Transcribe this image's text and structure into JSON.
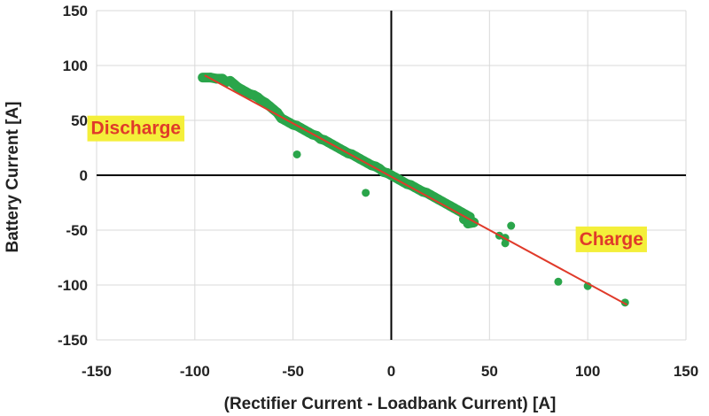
{
  "chart_data": {
    "type": "scatter",
    "title": "",
    "xlabel": "(Rectifier Current - Loadbank Current) [A]",
    "ylabel": "Battery Current [A]",
    "xlim": [
      -150,
      150
    ],
    "ylim": [
      -150,
      150
    ],
    "xticks": [
      -150,
      -100,
      -50,
      0,
      50,
      100,
      150
    ],
    "yticks": [
      -150,
      -100,
      -50,
      0,
      50,
      100,
      150
    ],
    "grid": true,
    "point_color": "#2aa54a",
    "trend_color": "#e03a2a",
    "trendline": {
      "x": [
        -95,
        120
      ],
      "y": [
        91,
        -118
      ]
    },
    "points": [
      {
        "x": -96,
        "y": 89
      },
      {
        "x": -92,
        "y": 89
      },
      {
        "x": -89,
        "y": 88
      },
      {
        "x": -86,
        "y": 88
      },
      {
        "x": -84,
        "y": 85
      },
      {
        "x": -82,
        "y": 86
      },
      {
        "x": -80,
        "y": 83
      },
      {
        "x": -78,
        "y": 80
      },
      {
        "x": -76,
        "y": 78
      },
      {
        "x": -74,
        "y": 76
      },
      {
        "x": -72,
        "y": 74
      },
      {
        "x": -70,
        "y": 73
      },
      {
        "x": -68,
        "y": 71
      },
      {
        "x": -66,
        "y": 68
      },
      {
        "x": -64,
        "y": 66
      },
      {
        "x": -62,
        "y": 63
      },
      {
        "x": -60,
        "y": 60
      },
      {
        "x": -58,
        "y": 57
      },
      {
        "x": -56,
        "y": 52
      },
      {
        "x": -54,
        "y": 50
      },
      {
        "x": -52,
        "y": 48
      },
      {
        "x": -50,
        "y": 46
      },
      {
        "x": -48,
        "y": 45
      },
      {
        "x": -46,
        "y": 43
      },
      {
        "x": -44,
        "y": 41
      },
      {
        "x": -42,
        "y": 39
      },
      {
        "x": -40,
        "y": 37
      },
      {
        "x": -38,
        "y": 36
      },
      {
        "x": -36,
        "y": 33
      },
      {
        "x": -34,
        "y": 32
      },
      {
        "x": -32,
        "y": 30
      },
      {
        "x": -30,
        "y": 28
      },
      {
        "x": -28,
        "y": 26
      },
      {
        "x": -26,
        "y": 24
      },
      {
        "x": -24,
        "y": 22
      },
      {
        "x": -22,
        "y": 20
      },
      {
        "x": -20,
        "y": 19
      },
      {
        "x": -18,
        "y": 17
      },
      {
        "x": -16,
        "y": 15
      },
      {
        "x": -14,
        "y": 13
      },
      {
        "x": -12,
        "y": 11
      },
      {
        "x": -10,
        "y": 9
      },
      {
        "x": -8,
        "y": 8
      },
      {
        "x": -6,
        "y": 6
      },
      {
        "x": -4,
        "y": 3
      },
      {
        "x": -2,
        "y": 2
      },
      {
        "x": 0,
        "y": 0
      },
      {
        "x": 2,
        "y": -2
      },
      {
        "x": 4,
        "y": -4
      },
      {
        "x": 6,
        "y": -6
      },
      {
        "x": 8,
        "y": -8
      },
      {
        "x": 10,
        "y": -9
      },
      {
        "x": 12,
        "y": -11
      },
      {
        "x": 14,
        "y": -13
      },
      {
        "x": 16,
        "y": -15
      },
      {
        "x": 18,
        "y": -16
      },
      {
        "x": 20,
        "y": -18
      },
      {
        "x": 22,
        "y": -20
      },
      {
        "x": 24,
        "y": -22
      },
      {
        "x": 26,
        "y": -24
      },
      {
        "x": 28,
        "y": -26
      },
      {
        "x": 30,
        "y": -28
      },
      {
        "x": 32,
        "y": -30
      },
      {
        "x": 34,
        "y": -32
      },
      {
        "x": 36,
        "y": -34
      },
      {
        "x": 38,
        "y": -36
      },
      {
        "x": 40,
        "y": -38
      },
      {
        "x": 37,
        "y": -40
      },
      {
        "x": 42,
        "y": -43
      },
      {
        "x": 39,
        "y": -44
      },
      {
        "x": -48,
        "y": 19
      },
      {
        "x": -13,
        "y": -16
      },
      {
        "x": 55,
        "y": -55
      },
      {
        "x": 58,
        "y": -57
      },
      {
        "x": 58,
        "y": -62
      },
      {
        "x": 61,
        "y": -46
      },
      {
        "x": 85,
        "y": -97
      },
      {
        "x": 100,
        "y": -101
      },
      {
        "x": 119,
        "y": -116
      }
    ],
    "annotations": [
      {
        "text": "Discharge",
        "x": -130,
        "y": 43,
        "color": "#e03a2a",
        "background": "#f4ef3a"
      },
      {
        "text": "Charge",
        "x": 112,
        "y": -58,
        "color": "#e03a2a",
        "background": "#f4ef3a"
      }
    ]
  }
}
